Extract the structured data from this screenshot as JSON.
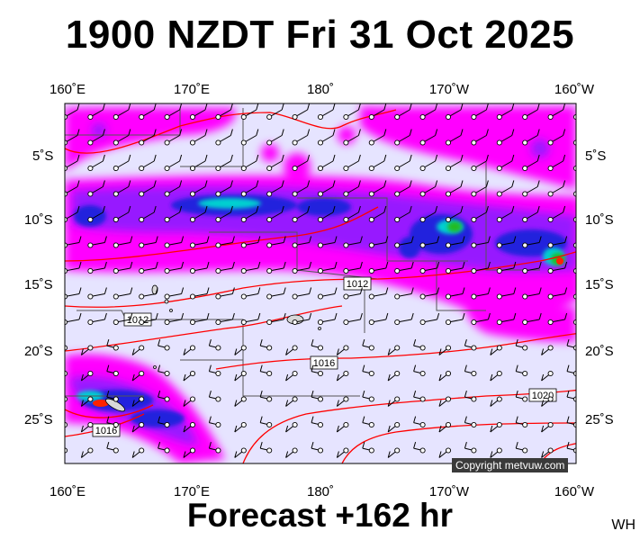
{
  "title": "1900 NZDT Fri 31 Oct 2025",
  "footer": "Forecast +162 hr",
  "corner_label": "WH",
  "copyright": "Copyright metvuw.com",
  "lon_labels": [
    "160˚E",
    "170˚E",
    "180˚",
    "170˚W",
    "160˚W"
  ],
  "lat_labels": [
    "5˚S",
    "10˚S",
    "15˚S",
    "20˚S",
    "25˚S"
  ],
  "isobar_labels": [
    "1012",
    "1012",
    "1016",
    "1016",
    "1020"
  ],
  "colors": {
    "background": "#e6e4ff",
    "rain_light": "#ff00ff",
    "rain_mid": "#8c1fff",
    "rain_heavy": "#2222dd",
    "rain_very_heavy": "#00d0d0",
    "rain_extreme": "#22bb22",
    "rain_peak": "#ff2200",
    "isobar": "#ff0000",
    "boundary": "#555555"
  }
}
